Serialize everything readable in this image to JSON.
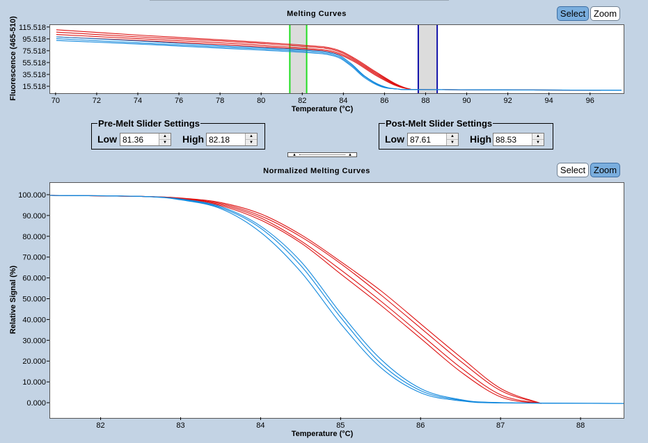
{
  "top_panel": {
    "title": "Melting Curves",
    "select_label": "Select",
    "zoom_label": "Zoom",
    "mode": "Select",
    "ylabel": "Fluorescence (465-510)",
    "xlabel": "Temperature (°C)"
  },
  "bottom_panel": {
    "title": "Normalized Melting Curves",
    "select_label": "Select",
    "zoom_label": "Zoom",
    "mode": "Zoom",
    "ylabel": "Relative Signal (%)",
    "xlabel": "Temperature (°C)"
  },
  "pre_melt": {
    "title": "Pre-Melt Slider Settings",
    "low_label": "Low",
    "low_value": "81.36",
    "high_label": "High",
    "high_value": "82.18"
  },
  "post_melt": {
    "title": "Post-Melt Slider Settings",
    "low_label": "Low",
    "low_value": "87.61",
    "high_label": "High",
    "high_value": "88.53"
  },
  "colors": {
    "red_group": "#dd1111",
    "blue_group": "#1188dd",
    "pre_melt_slider": "#22dd22",
    "post_melt_slider": "#1111aa",
    "slider_band": "#dcdcdc",
    "active_button": "#7aaede"
  },
  "chart_data": [
    {
      "type": "line",
      "title": "Melting Curves",
      "xlabel": "Temperature (°C)",
      "ylabel": "Fluorescence (465-510)",
      "xlim": [
        69.7,
        97.6
      ],
      "ylim": [
        5,
        120
      ],
      "x_ticks": [
        70,
        72,
        74,
        76,
        78,
        80,
        82,
        84,
        86,
        88,
        90,
        92,
        94,
        96
      ],
      "y_ticks": [
        15.518,
        35.518,
        55.518,
        75.518,
        95.518,
        115.518
      ],
      "pre_melt_range": [
        81.36,
        82.18
      ],
      "post_melt_range": [
        87.61,
        88.53
      ],
      "series": [
        {
          "color": "#dd1111",
          "x": [
            70,
            74,
            78,
            82,
            83.5,
            84.5,
            85.5,
            86.5,
            87.2,
            88,
            96.5
          ],
          "y": [
            108,
            100,
            93,
            84,
            78,
            62,
            40,
            20,
            12,
            11,
            10
          ]
        },
        {
          "color": "#dd1111",
          "x": [
            70,
            74,
            78,
            82,
            83.5,
            84.5,
            85.5,
            86.5,
            87.2,
            88,
            96.5
          ],
          "y": [
            104,
            97,
            90,
            81,
            75,
            60,
            38,
            19,
            12,
            11,
            10
          ]
        },
        {
          "color": "#dd1111",
          "x": [
            70,
            74,
            78,
            82,
            83.5,
            84.5,
            85.5,
            86.5,
            87.2,
            88,
            96.5
          ],
          "y": [
            100,
            94,
            87,
            79,
            73,
            58,
            36,
            18,
            12,
            11,
            10
          ]
        },
        {
          "color": "#dd1111",
          "x": [
            70,
            74,
            78,
            82,
            83.5,
            84.5,
            85.5,
            86.5,
            87.2,
            88,
            96.5
          ],
          "y": [
            112,
            103,
            95,
            86,
            80,
            64,
            42,
            21,
            12,
            11,
            10
          ]
        },
        {
          "color": "#1188dd",
          "x": [
            70,
            74,
            78,
            82,
            83.5,
            84.3,
            85,
            85.8,
            86.6,
            88,
            97.5
          ],
          "y": [
            97,
            90,
            83,
            76,
            70,
            54,
            33,
            17,
            12,
            11,
            10
          ]
        },
        {
          "color": "#1188dd",
          "x": [
            70,
            74,
            78,
            82,
            83.5,
            84.3,
            85,
            85.8,
            86.6,
            88,
            97.5
          ],
          "y": [
            94,
            88,
            81,
            74,
            68,
            52,
            31,
            16,
            12,
            11,
            10
          ]
        },
        {
          "color": "#1188dd",
          "x": [
            70,
            74,
            78,
            82,
            83.5,
            84.3,
            85,
            85.8,
            86.6,
            88,
            97.5
          ],
          "y": [
            100,
            93,
            85,
            78,
            72,
            56,
            34,
            18,
            12,
            11,
            10
          ]
        }
      ]
    },
    {
      "type": "line",
      "title": "Normalized Melting Curves",
      "xlabel": "Temperature (°C)",
      "ylabel": "Relative Signal (%)",
      "xlim": [
        81.36,
        88.53
      ],
      "ylim": [
        -7,
        106
      ],
      "x_ticks": [
        82,
        83,
        84,
        85,
        86,
        87,
        88
      ],
      "y_ticks": [
        0,
        10,
        20,
        30,
        40,
        50,
        60,
        70,
        80,
        90,
        100
      ],
      "y_tick_labels": [
        "0.000",
        "10.000",
        "20.000",
        "30.000",
        "40.000",
        "50.000",
        "60.000",
        "70.000",
        "80.000",
        "90.000",
        "100.000"
      ],
      "series": [
        {
          "color": "#dd1111",
          "x": [
            81.36,
            82.5,
            83,
            83.5,
            84,
            84.5,
            85,
            85.5,
            86,
            86.5,
            87,
            87.5
          ],
          "y": [
            100,
            99.5,
            98.5,
            96,
            90,
            80,
            67,
            52,
            36,
            20,
            6,
            0
          ]
        },
        {
          "color": "#dd1111",
          "x": [
            81.36,
            82.5,
            83,
            83.5,
            84,
            84.5,
            85,
            85.5,
            86,
            86.5,
            87,
            87.5
          ],
          "y": [
            100,
            99.5,
            98.5,
            95.5,
            89,
            78,
            64,
            49,
            33,
            17,
            4,
            0
          ]
        },
        {
          "color": "#dd1111",
          "x": [
            81.36,
            82.5,
            83,
            83.5,
            84,
            84.5,
            85,
            85.5,
            86,
            86.5,
            87,
            87.5
          ],
          "y": [
            100,
            99.5,
            98.7,
            96.5,
            91,
            81,
            68,
            54,
            38,
            22,
            7,
            0
          ]
        },
        {
          "color": "#dd1111",
          "x": [
            81.36,
            82.5,
            83,
            83.5,
            84,
            84.5,
            85,
            85.5,
            86,
            86.5,
            87,
            87.5
          ],
          "y": [
            100,
            99.5,
            98.3,
            95,
            88,
            77,
            62,
            47,
            31,
            15,
            3,
            0
          ]
        },
        {
          "color": "#1188dd",
          "x": [
            81.36,
            82.5,
            83,
            83.5,
            84,
            84.5,
            85,
            85.5,
            86,
            86.5,
            87,
            88.53
          ],
          "y": [
            100,
            99.5,
            98,
            94,
            84,
            66,
            41,
            19,
            6,
            1.5,
            0.3,
            0
          ]
        },
        {
          "color": "#1188dd",
          "x": [
            81.36,
            82.5,
            83,
            83.5,
            84,
            84.5,
            85,
            85.5,
            86,
            86.5,
            87,
            88.53
          ],
          "y": [
            100,
            99.5,
            97.8,
            93.5,
            82,
            63,
            38,
            17,
            5,
            1.2,
            0.2,
            0
          ]
        },
        {
          "color": "#1188dd",
          "x": [
            81.36,
            82.5,
            83,
            83.5,
            84,
            84.5,
            85,
            85.5,
            86,
            86.5,
            87,
            88.53
          ],
          "y": [
            100,
            99.5,
            98.2,
            94.5,
            85,
            68,
            43,
            21,
            7,
            1.8,
            0.4,
            0
          ]
        }
      ]
    }
  ]
}
